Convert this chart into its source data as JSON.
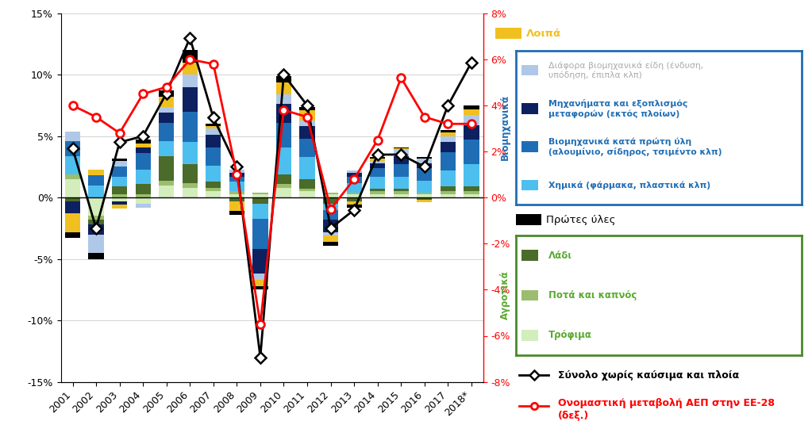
{
  "years": [
    "2001",
    "2002",
    "2003",
    "2004",
    "2005",
    "2006",
    "2007",
    "2008",
    "2009",
    "2010",
    "2011",
    "2012",
    "2013",
    "2014",
    "2015",
    "2016",
    "2017",
    "2018*"
  ],
  "trofima": [
    1.5,
    -1.5,
    -0.3,
    -0.5,
    1.0,
    0.8,
    0.5,
    0.3,
    0.3,
    0.8,
    0.5,
    0.3,
    0.3,
    0.3,
    0.3,
    0.3,
    0.3,
    0.3
  ],
  "pota_kapnos": [
    0.4,
    -0.3,
    0.3,
    0.3,
    0.4,
    0.4,
    0.3,
    0.2,
    0.1,
    0.3,
    0.2,
    0.1,
    0.1,
    0.2,
    0.2,
    0.1,
    0.2,
    0.2
  ],
  "ladi": [
    -0.3,
    -0.4,
    0.6,
    0.8,
    2.0,
    1.5,
    0.5,
    -0.3,
    -0.5,
    0.8,
    0.8,
    -0.5,
    -0.3,
    0.2,
    0.2,
    -0.2,
    0.4,
    0.4
  ],
  "chimika": [
    1.5,
    1.0,
    0.8,
    1.2,
    1.2,
    1.8,
    1.3,
    0.8,
    -1.2,
    2.2,
    1.8,
    -0.5,
    0.8,
    1.0,
    1.0,
    1.0,
    1.3,
    1.8
  ],
  "viomixanika_prwtes": [
    1.2,
    0.8,
    0.8,
    1.3,
    1.5,
    2.5,
    1.5,
    0.4,
    -2.5,
    2.0,
    1.5,
    -0.8,
    0.5,
    0.7,
    1.0,
    1.0,
    1.5,
    2.0
  ],
  "mixanimata": [
    -1.0,
    -0.8,
    -0.3,
    0.5,
    0.8,
    2.0,
    1.0,
    0.3,
    -2.0,
    1.5,
    1.0,
    -1.0,
    0.3,
    0.4,
    0.7,
    0.4,
    0.8,
    1.2
  ],
  "diafora": [
    0.8,
    -1.5,
    0.5,
    -0.3,
    0.5,
    1.0,
    0.5,
    0.3,
    -0.5,
    0.8,
    0.5,
    -0.3,
    0.2,
    0.2,
    0.5,
    0.4,
    0.5,
    0.8
  ],
  "loipa": [
    -1.5,
    0.5,
    -0.3,
    0.3,
    0.8,
    1.0,
    0.2,
    -0.8,
    -0.5,
    1.0,
    0.8,
    -0.5,
    -0.3,
    0.2,
    0.1,
    -0.2,
    0.3,
    0.5
  ],
  "prwtes_yles": [
    -0.5,
    -0.5,
    0.2,
    0.3,
    0.5,
    1.0,
    0.2,
    -0.3,
    -0.3,
    0.5,
    0.3,
    -0.3,
    -0.2,
    0.1,
    0.1,
    0.1,
    0.2,
    0.3
  ],
  "synolo": [
    4.0,
    -2.5,
    4.5,
    5.0,
    8.5,
    13.0,
    6.5,
    2.5,
    -13.0,
    10.0,
    7.5,
    -2.5,
    -1.0,
    3.5,
    3.5,
    2.5,
    7.5,
    11.0
  ],
  "gdp_eu28": [
    4.0,
    3.5,
    2.8,
    4.5,
    4.8,
    6.0,
    5.8,
    1.0,
    -5.5,
    3.8,
    3.5,
    -0.5,
    0.8,
    2.5,
    5.2,
    3.5,
    3.2,
    3.2
  ],
  "color_trofima": "#d4edbc",
  "color_pota_kapnos": "#9abe6e",
  "color_ladi": "#4a6b2a",
  "color_chimika": "#4dbfef",
  "color_viomixanika_prwtes": "#1f6eb5",
  "color_mixanimata": "#0d2060",
  "color_diafora": "#b0c8e8",
  "color_loipa": "#f0c020",
  "color_prwtes_yles": "#000000",
  "color_box_blue": "#1f6eb5",
  "color_box_green": "#4a8a2a",
  "color_agrotika_label": "#5aaa30",
  "ylim_left": [
    -15,
    15
  ],
  "ylim_right": [
    -8,
    8
  ],
  "background_color": "#ffffff",
  "grid_color": "#cccccc",
  "legend_items_blue": [
    [
      "#b0c8e8",
      "Διάφορα βιομηχανικά είδη (ένδυση,\nυπόδηση, έπιπλα κλπ)",
      "grey"
    ],
    [
      "#0d2060",
      "Μηχανήματα και εξοπλισμός\nμεταφορών (εκτός πλοίων)",
      "blue"
    ],
    [
      "#1f6eb5",
      "Βιομηχανικά κατά πρώτη ύλη\n(αλουμίνιο, σίδηρος, τσιμέντο κλπ)",
      "blue"
    ],
    [
      "#4dbfef",
      "Χημικά (φάρμακα, πλαστικά κλπ)",
      "blue"
    ]
  ],
  "legend_items_green": [
    [
      "#4a6b2a",
      "Λάδι",
      "green"
    ],
    [
      "#9abe6e",
      "Ποτά και καπνός",
      "green"
    ],
    [
      "#d4edbc",
      "Τρόφιμα",
      "green"
    ]
  ]
}
